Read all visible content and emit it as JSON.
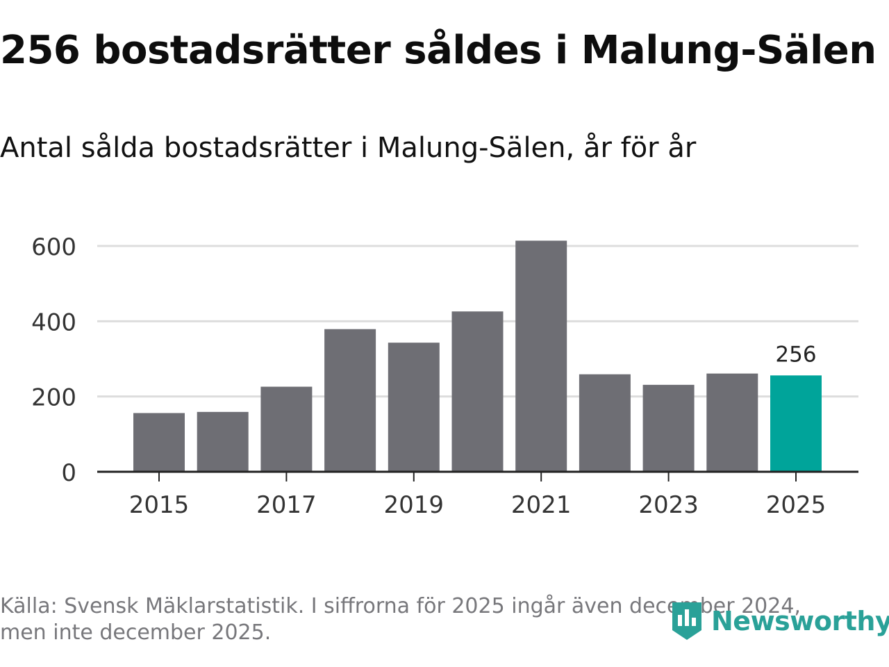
{
  "title": "256 bostadsrätter såldes i Malung-Sälen",
  "subtitle": "Antal sålda bostadsrätter i Malung-Sälen, år för år",
  "footer": {
    "line1": "Källa: Svensk Mäklarstatistik. I siffrorna för 2025 ingår även december 2024,",
    "line2": "men inte december 2025."
  },
  "logo": {
    "text": "Newsworthy",
    "icon": "newsworthy-logo-icon"
  },
  "colors": {
    "bar": "#6e6e74",
    "highlight": "#00a49a",
    "grid": "#dddddd",
    "axis": "#222222",
    "text": "#333333"
  },
  "chart_data": {
    "type": "bar",
    "title": "256 bostadsrätter såldes i Malung-Sälen",
    "subtitle": "Antal sålda bostadsrätter i Malung-Sälen, år för år",
    "xlabel": "",
    "ylabel": "",
    "categories": [
      "2015",
      "2016",
      "2017",
      "2018",
      "2019",
      "2020",
      "2021",
      "2022",
      "2023",
      "2024",
      "2025"
    ],
    "values": [
      156,
      159,
      226,
      379,
      343,
      426,
      614,
      259,
      231,
      261,
      256
    ],
    "highlight_index": 10,
    "highlight_label": "256",
    "ylim": [
      0,
      650
    ],
    "yticks": [
      0,
      200,
      400,
      600
    ],
    "xticks": [
      "2015",
      "2017",
      "2019",
      "2021",
      "2023",
      "2025"
    ],
    "grid": true
  }
}
